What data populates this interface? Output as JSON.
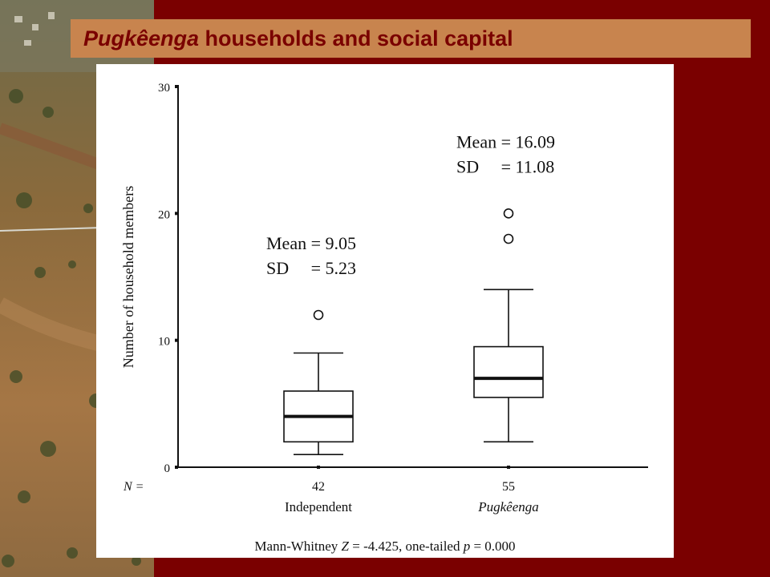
{
  "slide": {
    "title_italic": "Pugkêenga",
    "title_rest": " households and social capital",
    "colors": {
      "background": "#7a0000",
      "title_bar": "#c8844e",
      "title_text": "#7a0000"
    },
    "footnote": {
      "prefix": "Mann-Whitney ",
      "z_symbol": "Z",
      "z_part": " = -4.425, one-tailed ",
      "p_symbol": "p",
      "p_part": " = 0.000"
    }
  },
  "chart_data": {
    "type": "boxplot",
    "ylabel": "Number of household members",
    "ylim": [
      0,
      30
    ],
    "yticks": [
      0,
      10,
      20,
      30
    ],
    "n_label": "N =",
    "groups": [
      {
        "name": "Independent",
        "name_italic": false,
        "n": "42",
        "whisker_low": 1,
        "q1": 2,
        "median": 4,
        "q3": 6,
        "whisker_high": 9,
        "outliers": [
          12
        ],
        "mean_label": "Mean = 9.05",
        "sd_label": "SD     = 5.23"
      },
      {
        "name": "Pugkêenga",
        "name_italic": true,
        "n": "55",
        "whisker_low": 2,
        "q1": 5.5,
        "median": 7,
        "q3": 9.5,
        "whisker_high": 14,
        "outliers": [
          18,
          20
        ],
        "mean_label": "Mean = 16.09",
        "sd_label": "SD     = 11.08"
      }
    ]
  }
}
